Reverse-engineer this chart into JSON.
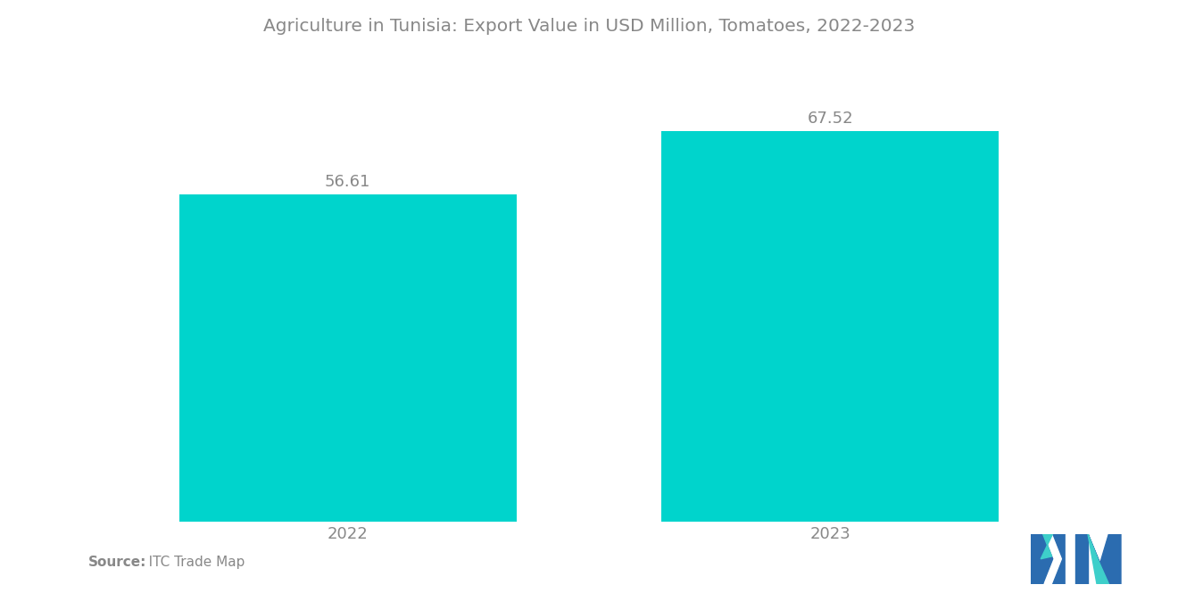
{
  "title": "Agriculture in Tunisia: Export Value in USD Million, Tomatoes, 2022-2023",
  "categories": [
    "2022",
    "2023"
  ],
  "values": [
    56.61,
    67.52
  ],
  "bar_color": "#00D4CC",
  "background_color": "#ffffff",
  "title_fontsize": 14.5,
  "label_fontsize": 13,
  "value_fontsize": 13,
  "source_bold": "Source:",
  "source_normal": "   ITC Trade Map",
  "ylim": [
    0,
    80
  ],
  "bar_width": 0.7,
  "xlim": [
    -0.55,
    1.55
  ],
  "text_color": "#888888",
  "logo_blue": "#2B6CB0",
  "logo_teal": "#3ECFCA"
}
